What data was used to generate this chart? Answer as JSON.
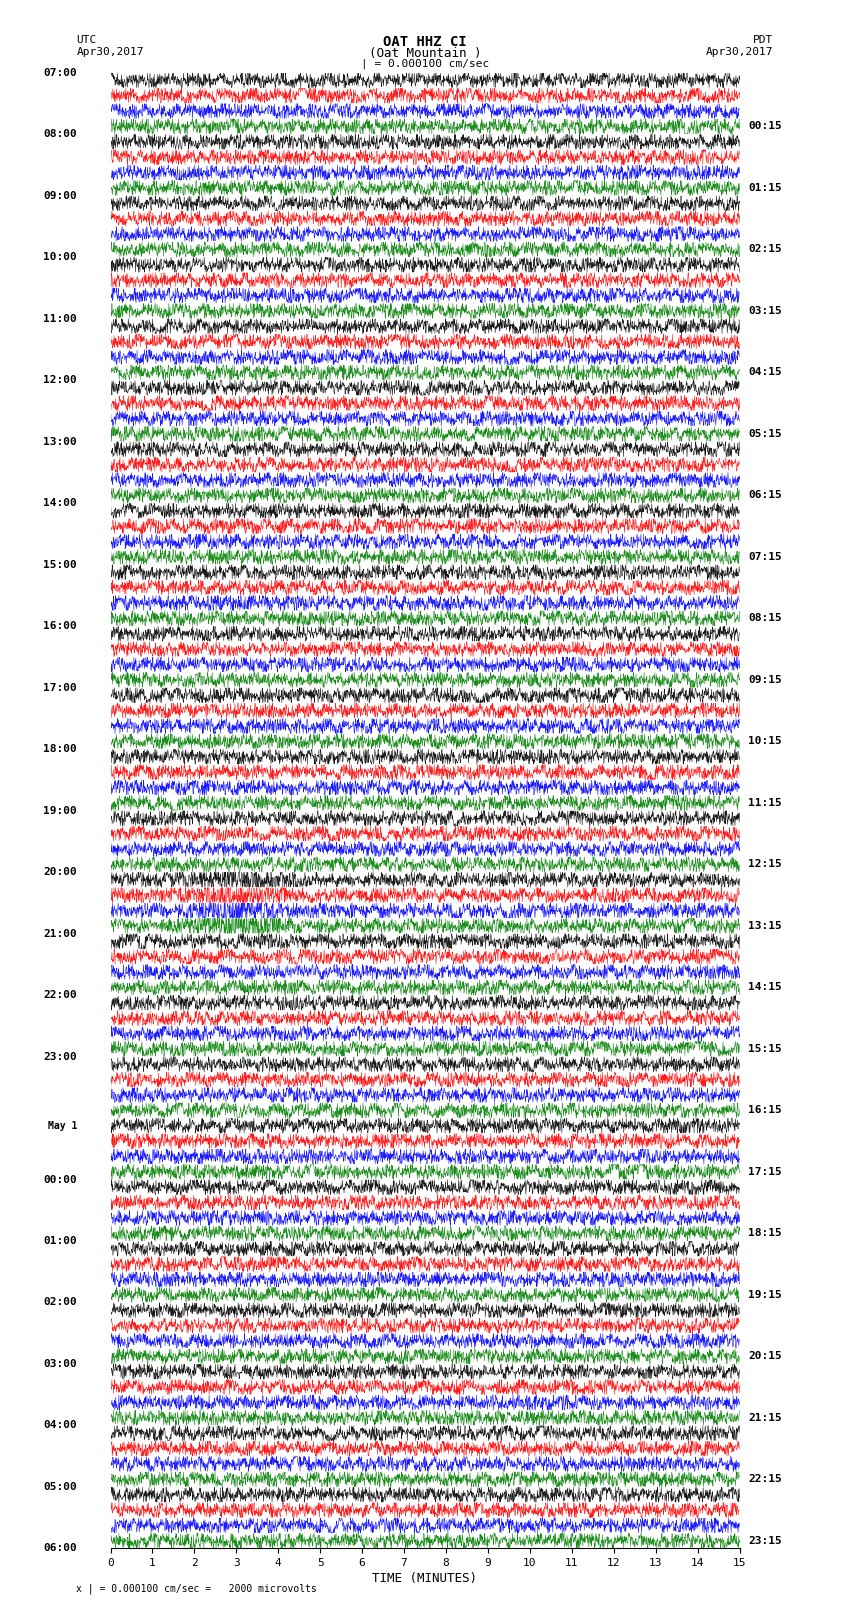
{
  "title_line1": "OAT HHZ CI",
  "title_line2": "(Oat Mountain )",
  "title_line3": "| = 0.000100 cm/sec",
  "left_header_line1": "UTC",
  "left_header_line2": "Apr30,2017",
  "right_header_line1": "PDT",
  "right_header_line2": "Apr30,2017",
  "xlabel": "TIME (MINUTES)",
  "footer": "x | = 0.000100 cm/sec =   2000 microvolts",
  "utc_times": [
    "07:00",
    "08:00",
    "09:00",
    "10:00",
    "11:00",
    "12:00",
    "13:00",
    "14:00",
    "15:00",
    "16:00",
    "17:00",
    "18:00",
    "19:00",
    "20:00",
    "21:00",
    "22:00",
    "23:00",
    "May 1",
    "00:00",
    "01:00",
    "02:00",
    "03:00",
    "04:00",
    "05:00",
    "06:00"
  ],
  "pdt_times": [
    "00:15",
    "01:15",
    "02:15",
    "03:15",
    "04:15",
    "05:15",
    "06:15",
    "07:15",
    "08:15",
    "09:15",
    "10:15",
    "11:15",
    "12:15",
    "13:15",
    "14:15",
    "15:15",
    "16:15",
    "17:15",
    "18:15",
    "19:15",
    "20:15",
    "21:15",
    "22:15",
    "23:15"
  ],
  "colors": [
    "black",
    "red",
    "blue",
    "green"
  ],
  "n_rows": 24,
  "n_traces": 4,
  "x_min": 0,
  "x_max": 15,
  "x_ticks": [
    0,
    1,
    2,
    3,
    4,
    5,
    6,
    7,
    8,
    9,
    10,
    11,
    12,
    13,
    14,
    15
  ],
  "background_color": "white",
  "amplitude_scale": 0.35,
  "noise_scale": 0.25,
  "seed": 42
}
